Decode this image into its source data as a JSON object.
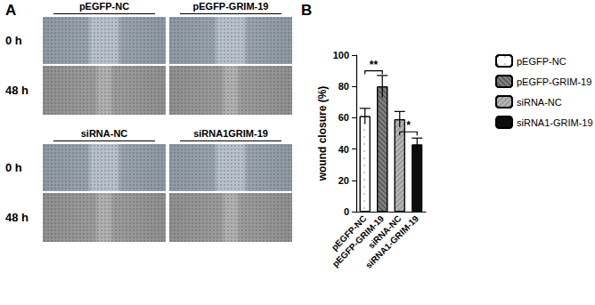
{
  "panel_a": {
    "label": "A",
    "groups": [
      {
        "columns": [
          "pEGFP-NC",
          "pEGFP-GRIM-19"
        ],
        "rows": [
          "0 h",
          "48 h"
        ]
      },
      {
        "columns": [
          "siRNA-NC",
          "siRNA1GRIM-19"
        ],
        "rows": [
          "0 h",
          "48 h"
        ]
      }
    ]
  },
  "chart_data": {
    "type": "bar",
    "panel_label": "B",
    "categories": [
      "pEGFP-NC",
      "pEGFP-GRIM-19",
      "siRNA-NC",
      "siRNA1-GRIM-19"
    ],
    "values": [
      61,
      80,
      59,
      43
    ],
    "errors": [
      5,
      7,
      5,
      4
    ],
    "colors": [
      "#ffffff",
      "#7f7f7f",
      "#9e9e9e",
      "#0d0d0d"
    ],
    "y_label": "wound closure (%)",
    "ylim": [
      0,
      100
    ],
    "yticks": [
      0,
      20,
      40,
      60,
      80,
      100
    ],
    "grid": false,
    "legend": "upper right",
    "annotations": [
      {
        "text": "**",
        "from": 0,
        "to": 1,
        "y": 90
      },
      {
        "text": "*",
        "from": 2,
        "to": 3,
        "y": 51
      }
    ]
  }
}
